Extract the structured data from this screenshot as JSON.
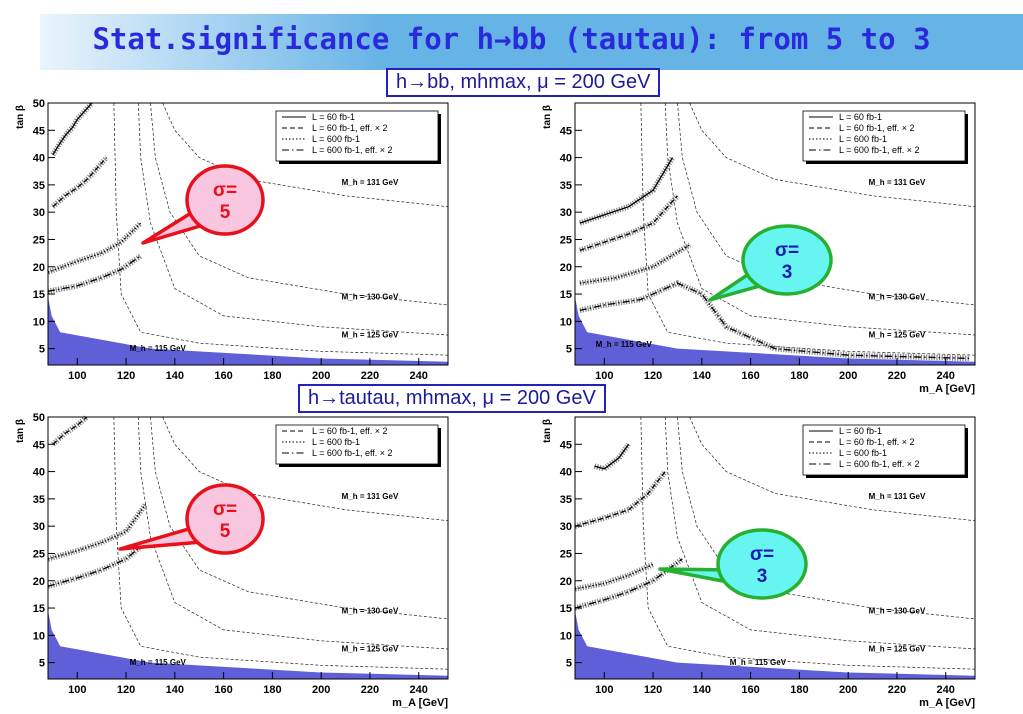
{
  "slide": {
    "title": "Stat.significance for h→bb (tautau): from 5 to 3",
    "label_bb": "h→bb, mhmax, μ = 200 GeV",
    "label_tautau": "h→tautau, mhmax, μ = 200 GeV"
  },
  "colors": {
    "banner": "#66b3e6",
    "title": "#2a2add",
    "fill": "#5f5fd8",
    "red": "#e8101a",
    "pink": "#f9c6e0",
    "green": "#27b030",
    "cyan": "#66f5f0"
  },
  "chart_data": [
    {
      "type": "line",
      "id": "bb-left",
      "channel": "h→bb",
      "xlabel": "m_A [GeV]",
      "ylabel": "tan β",
      "xlim": [
        88,
        252
      ],
      "ylim": [
        2,
        50
      ],
      "xticks": [
        100,
        120,
        140,
        160,
        180,
        200,
        220,
        240
      ],
      "yticks": [
        5,
        10,
        15,
        20,
        25,
        30,
        35,
        40,
        45,
        50
      ],
      "legend": [
        "L = 60 fb-1",
        "L = 60 fb-1, eff. × 2",
        "L = 600 fb-1",
        "L = 600 fb-1, eff. × 2"
      ],
      "callout": {
        "text": "σ=\n5",
        "color": "red"
      },
      "mh_labels": [
        {
          "text": "M_h = 131 GeV",
          "x": 220,
          "y": 35
        },
        {
          "text": "M_h = 130 GeV",
          "x": 220,
          "y": 14
        },
        {
          "text": "M_h = 125 GeV",
          "x": 220,
          "y": 7
        },
        {
          "text": "M_h = 115 GeV",
          "x": 133,
          "y": 4.6
        }
      ],
      "series": [
        {
          "name": "L = 60 fb-1",
          "x": [
            90,
            92,
            95,
            98,
            100,
            104,
            106
          ],
          "y": [
            40.5,
            42,
            44,
            45.5,
            47,
            49,
            50
          ]
        },
        {
          "name": "L = 60 fb-1, eff. × 2",
          "x": [
            90,
            95,
            100,
            104,
            108,
            112
          ],
          "y": [
            31,
            33,
            34.5,
            36,
            38,
            40
          ]
        },
        {
          "name": "L = 600 fb-1",
          "x": [
            88,
            100,
            110,
            118,
            126
          ],
          "y": [
            19,
            21,
            22.5,
            24.5,
            28
          ]
        },
        {
          "name": "L = 600 fb-1, eff. × 2",
          "x": [
            88,
            100,
            110,
            118,
            126
          ],
          "y": [
            15.5,
            16.5,
            18,
            19.5,
            22
          ]
        }
      ]
    },
    {
      "type": "line",
      "id": "bb-right",
      "channel": "h→bb",
      "xlabel": "m_A [GeV]",
      "ylabel": "tan β",
      "xlim": [
        88,
        252
      ],
      "ylim": [
        2,
        50
      ],
      "xticks": [
        100,
        120,
        140,
        160,
        180,
        200,
        220,
        240
      ],
      "yticks": [
        5,
        10,
        15,
        20,
        25,
        30,
        35,
        40,
        45
      ],
      "legend": [
        "L = 60 fb-1",
        "L = 60 fb-1, eff. × 2",
        "L = 600 fb-1",
        "L = 600 fb-1, eff. × 2"
      ],
      "callout": {
        "text": "σ=\n3",
        "color": "green"
      },
      "mh_labels": [
        {
          "text": "M_h = 131 GeV",
          "x": 220,
          "y": 35
        },
        {
          "text": "M_h = 130 GeV",
          "x": 220,
          "y": 14
        },
        {
          "text": "M_h = 125 GeV",
          "x": 220,
          "y": 7
        },
        {
          "text": "M_h = 115 GeV",
          "x": 108,
          "y": 5.3
        }
      ],
      "series": [
        {
          "name": "L = 60 fb-1",
          "x": [
            90,
            100,
            110,
            120,
            128
          ],
          "y": [
            28,
            29.5,
            31,
            34,
            40
          ]
        },
        {
          "name": "L = 60 fb-1, eff. × 2",
          "x": [
            90,
            100,
            110,
            120,
            130
          ],
          "y": [
            23,
            24.5,
            26,
            28,
            33
          ]
        },
        {
          "name": "L = 600 fb-1",
          "x": [
            90,
            105,
            120,
            135
          ],
          "y": [
            17,
            18,
            20,
            24
          ]
        },
        {
          "name": "L = 600 fb-1, eff. × 2",
          "x": [
            90,
            100,
            115,
            130,
            140,
            150,
            170,
            200,
            250
          ],
          "y": [
            12,
            13,
            14,
            17,
            15,
            9,
            5,
            3.8,
            3.2
          ]
        }
      ]
    },
    {
      "type": "line",
      "id": "tautau-left",
      "channel": "h→tautau",
      "xlabel": "m_A [GeV]",
      "ylabel": "tan β",
      "xlim": [
        88,
        252
      ],
      "ylim": [
        2,
        50
      ],
      "xticks": [
        100,
        120,
        140,
        160,
        180,
        200,
        220,
        240
      ],
      "yticks": [
        5,
        10,
        15,
        20,
        25,
        30,
        35,
        40,
        45,
        50
      ],
      "legend": [
        "L = 60 fb-1, eff. × 2",
        "L = 600 fb-1",
        "L = 600 fb-1, eff. × 2"
      ],
      "callout": {
        "text": "σ=\n5",
        "color": "red"
      },
      "mh_labels": [
        {
          "text": "M_h = 131 GeV",
          "x": 220,
          "y": 35
        },
        {
          "text": "M_h = 130 GeV",
          "x": 220,
          "y": 14
        },
        {
          "text": "M_h = 125 GeV",
          "x": 220,
          "y": 7
        },
        {
          "text": "M_h = 115 GeV",
          "x": 133,
          "y": 4.6
        }
      ],
      "series": [
        {
          "name": "L = 60 fb-1, eff. × 2",
          "x": [
            90,
            95,
            100,
            104
          ],
          "y": [
            45,
            47,
            48.5,
            50
          ]
        },
        {
          "name": "L = 600 fb-1",
          "x": [
            88,
            100,
            110,
            120,
            128
          ],
          "y": [
            24,
            25.5,
            27,
            29,
            34
          ]
        },
        {
          "name": "L = 600 fb-1, eff. × 2",
          "x": [
            88,
            100,
            110,
            120,
            128
          ],
          "y": [
            19,
            20.5,
            22,
            24,
            27
          ]
        }
      ]
    },
    {
      "type": "line",
      "id": "tautau-right",
      "channel": "h→tautau",
      "xlabel": "m_A [GeV]",
      "ylabel": "tan β",
      "xlim": [
        88,
        252
      ],
      "ylim": [
        2,
        50
      ],
      "xticks": [
        100,
        120,
        140,
        160,
        180,
        200,
        220,
        240
      ],
      "yticks": [
        5,
        10,
        15,
        20,
        25,
        30,
        35,
        40,
        45
      ],
      "legend": [
        "L = 60 fb-1",
        "L = 60 fb-1, eff. × 2",
        "L = 600 fb-1",
        "L = 600 fb-1, eff. × 2"
      ],
      "callout": {
        "text": "σ=\n3",
        "color": "green"
      },
      "mh_labels": [
        {
          "text": "M_h = 131 GeV",
          "x": 220,
          "y": 35
        },
        {
          "text": "M_h = 130 GeV",
          "x": 220,
          "y": 14
        },
        {
          "text": "M_h = 125 GeV",
          "x": 220,
          "y": 7
        },
        {
          "text": "M_h = 115 GeV",
          "x": 163,
          "y": 4.6
        }
      ],
      "series": [
        {
          "name": "L = 60 fb-1",
          "x": [
            96,
            100,
            106,
            110
          ],
          "y": [
            41,
            40.5,
            42.5,
            45
          ]
        },
        {
          "name": "L = 60 fb-1, eff. × 2",
          "x": [
            88,
            100,
            110,
            118,
            125
          ],
          "y": [
            30,
            31.5,
            33,
            36,
            40
          ]
        },
        {
          "name": "L = 600 fb-1",
          "x": [
            88,
            100,
            110,
            120
          ],
          "y": [
            18.5,
            19.5,
            21,
            23
          ]
        },
        {
          "name": "L = 600 fb-1, eff. × 2",
          "x": [
            88,
            100,
            110,
            120,
            132
          ],
          "y": [
            15,
            16.5,
            18,
            20,
            24
          ]
        }
      ]
    }
  ]
}
